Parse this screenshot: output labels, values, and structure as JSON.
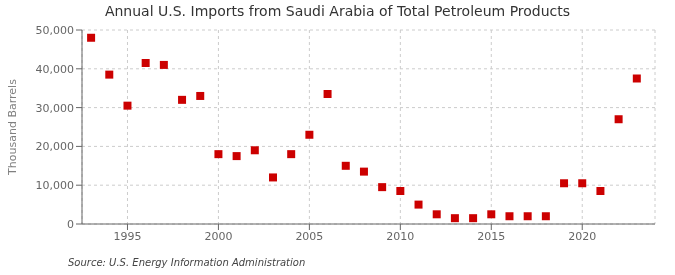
{
  "chart_data": {
    "type": "scatter",
    "title": "Annual U.S. Imports from Saudi Arabia of Total Petroleum Products",
    "y_label": "Thousand Barrels",
    "annotations": [
      "Source: U.S. Energy Information Administration"
    ],
    "x": [
      1993,
      1994,
      1995,
      1996,
      1997,
      1998,
      1999,
      2000,
      2001,
      2002,
      2003,
      2004,
      2005,
      2006,
      2007,
      2008,
      2009,
      2010,
      2011,
      2012,
      2013,
      2014,
      2015,
      2016,
      2017,
      2018,
      2019,
      2020,
      2021,
      2022,
      2023
    ],
    "values": [
      48000,
      38500,
      30500,
      41500,
      41000,
      32000,
      33000,
      18000,
      17500,
      19000,
      12000,
      18000,
      23000,
      33500,
      15000,
      13500,
      9500,
      8500,
      5000,
      2500,
      1500,
      1500,
      2500,
      2000,
      2000,
      2000,
      10500,
      10500,
      8500,
      27000,
      37500
    ],
    "color": "#cc0000",
    "marker": "square",
    "grid": true,
    "xlim": [
      1992.5,
      2024
    ],
    "xticks": [
      1995,
      2000,
      2005,
      2010,
      2015,
      2020
    ],
    "ylim": [
      0,
      50000
    ],
    "yticks": [
      0,
      {
        "value": 10000,
        "label": "10,000"
      },
      {
        "value": 20000,
        "label": "20,000"
      },
      {
        "value": 30000,
        "label": "30,000"
      },
      {
        "value": 40000,
        "label": "40,000"
      },
      {
        "value": 50000,
        "label": "50,000"
      }
    ]
  }
}
